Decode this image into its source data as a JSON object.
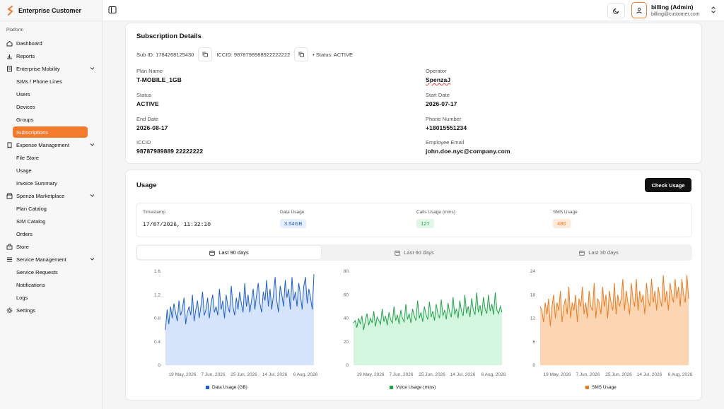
{
  "brand": {
    "name": "Enterprise Customer",
    "color": "#f47a2e"
  },
  "sidebar": {
    "section": "Platform",
    "items": [
      {
        "label": "Dashboard",
        "icon": "home-icon"
      },
      {
        "label": "Reports",
        "icon": "bar-chart-icon"
      },
      {
        "label": "Enterprise Mobility",
        "icon": "building-icon",
        "expanded": true,
        "children": [
          "SIMs / Phone Lines",
          "Users",
          "Devices",
          "Groups",
          "Subscriptions"
        ]
      },
      {
        "label": "Expense Management",
        "icon": "receipt-icon",
        "expanded": true,
        "children": [
          "File Store",
          "Usage",
          "Invoice Summary"
        ]
      },
      {
        "label": "Spenza Marketplace",
        "icon": "store-icon",
        "expanded": true,
        "children": [
          "Plan Catalog",
          "SIM Catalog",
          "Orders"
        ]
      },
      {
        "label": "Store",
        "icon": "shop-icon"
      },
      {
        "label": "Service Management",
        "icon": "list-icon",
        "expanded": true,
        "children": [
          "Service Requests",
          "Notifications",
          "Logs"
        ]
      },
      {
        "label": "Settings",
        "icon": "gear-icon"
      }
    ],
    "active": "Subscriptions"
  },
  "user": {
    "name": "billing (Admin)",
    "email": "billing@customer.com"
  },
  "subscription": {
    "title": "Subscription Details",
    "sub_id": "Sub ID: 1784268125430",
    "iccid_meta": "ICCID: 9878798988922222222",
    "status_meta": "• Status: ACTIVE",
    "fields": {
      "plan_name_label": "Plan Name",
      "plan_name": "T-MOBILE_1GB",
      "operator_label": "Operator",
      "operator": "SpenzaJ",
      "status_label": "Status",
      "status": "ACTIVE",
      "start_date_label": "Start Date",
      "start_date": "2026-07-17",
      "end_date_label": "End Date",
      "end_date": "2026-08-17",
      "phone_label": "Phone Number",
      "phone": "+18015551234",
      "iccid_label": "ICCID",
      "iccid": "98787989889 22222222",
      "email_label": "Employee Email",
      "email": "john.doe.nyc@company.com"
    }
  },
  "usage": {
    "title": "Usage",
    "check_button": "Check Usage",
    "columns": [
      "Timestamp",
      "Data Usage",
      "Calls Usage (mins)",
      "SMS Usage"
    ],
    "row": {
      "timestamp": "17/07/2026, 11:32:10",
      "data": "3.54GB",
      "calls": "127",
      "sms": "480"
    },
    "tabs": [
      "Last 90 days",
      "Last 60 days",
      "Last 30 days"
    ],
    "active_tab": "Last 90 days"
  },
  "chart_data": [
    {
      "type": "area",
      "series": [
        {
          "name": "Data Usage (GB)",
          "color": "#1f5fd6",
          "fill": "#d5e3fb"
        }
      ],
      "ylim": [
        0,
        1.6
      ],
      "yticks": [
        "0",
        "0.4",
        "0.8",
        "1.2",
        "1.6"
      ],
      "xticks": [
        "19 May, 2026",
        "7 Jun, 2026",
        "25 Jun, 2026",
        "14 Jul, 2026",
        "6 Aug, 2026"
      ],
      "values": [
        0.6,
        0.95,
        0.7,
        1.0,
        0.8,
        1.05,
        0.9,
        0.75,
        1.1,
        0.85,
        0.95,
        1.15,
        0.7,
        0.9,
        1.0,
        0.85,
        1.2,
        0.75,
        0.95,
        1.1,
        0.8,
        1.0,
        1.25,
        0.85,
        0.95,
        1.15,
        0.8,
        1.05,
        1.2,
        0.9,
        1.0,
        0.85,
        1.3,
        0.95,
        1.1,
        0.8,
        1.2,
        1.0,
        0.9,
        1.35,
        1.0,
        0.85,
        1.15,
        0.95,
        1.25,
        1.05,
        0.9,
        1.4,
        1.0,
        1.2,
        0.9,
        1.1,
        1.3,
        0.95,
        1.2,
        1.4,
        1.05,
        0.9,
        1.25,
        1.1,
        1.45,
        1.0,
        1.3,
        0.95,
        1.2,
        1.5,
        1.1,
        0.9,
        1.35,
        1.2,
        1.0,
        1.45,
        1.15,
        1.3,
        0.95,
        1.5,
        1.1,
        1.25,
        1.0,
        1.4,
        1.2,
        0.95,
        1.35,
        1.5,
        1.05,
        1.3,
        1.15,
        0.95,
        1.55
      ]
    },
    {
      "type": "area",
      "series": [
        {
          "name": "Voice Usage (mins)",
          "color": "#1fa54a",
          "fill": "#d4f5de"
        }
      ],
      "ylim": [
        0,
        80
      ],
      "yticks": [
        "0",
        "20",
        "40",
        "60",
        "80"
      ],
      "xticks": [
        "19 May, 2026",
        "7 Jun, 2026",
        "25 Jun, 2026",
        "14 Jul, 2026",
        "6 Aug, 2026"
      ],
      "values": [
        36,
        38,
        32,
        40,
        35,
        42,
        30,
        38,
        44,
        34,
        40,
        36,
        46,
        33,
        41,
        38,
        35,
        48,
        37,
        42,
        34,
        45,
        39,
        36,
        50,
        38,
        43,
        35,
        47,
        40,
        37,
        52,
        39,
        44,
        36,
        48,
        42,
        38,
        55,
        40,
        45,
        37,
        50,
        43,
        39,
        54,
        41,
        46,
        38,
        52,
        44,
        40,
        56,
        42,
        47,
        39,
        53,
        45,
        41,
        58,
        43,
        48,
        40,
        55,
        46,
        42,
        60,
        44,
        50,
        41,
        57,
        47,
        43,
        62,
        45,
        51,
        42,
        58,
        48,
        44,
        60,
        46,
        52,
        43,
        62,
        47,
        44,
        50,
        45
      ]
    },
    {
      "type": "area",
      "series": [
        {
          "name": "SMS Usage",
          "color": "#f07a1e",
          "fill": "#fcd5b3"
        }
      ],
      "ylim": [
        0,
        24
      ],
      "yticks": [
        "0",
        "6",
        "12",
        "18",
        "24"
      ],
      "xticks": [
        "19 May, 2026",
        "7 Jun, 2026",
        "25 Jun, 2026",
        "14 Jul, 2026",
        "6 Aug, 2026"
      ],
      "values": [
        15,
        14,
        11,
        16,
        13,
        17,
        10,
        15,
        18,
        12,
        16,
        14,
        19,
        11,
        15,
        17,
        13,
        20,
        12,
        16,
        14,
        18,
        11,
        17,
        15,
        20,
        13,
        16,
        12,
        19,
        15,
        14,
        21,
        12,
        17,
        16,
        13,
        20,
        15,
        18,
        12,
        19,
        16,
        14,
        21,
        13,
        18,
        15,
        17,
        22,
        14,
        19,
        16,
        13,
        21,
        17,
        15,
        22,
        14,
        19,
        16,
        18,
        13,
        21,
        17,
        15,
        22,
        16,
        19,
        14,
        20,
        17,
        15,
        23,
        16,
        19,
        14,
        21,
        18,
        16,
        22,
        17,
        20,
        15,
        22,
        18,
        16,
        23,
        17
      ]
    }
  ]
}
